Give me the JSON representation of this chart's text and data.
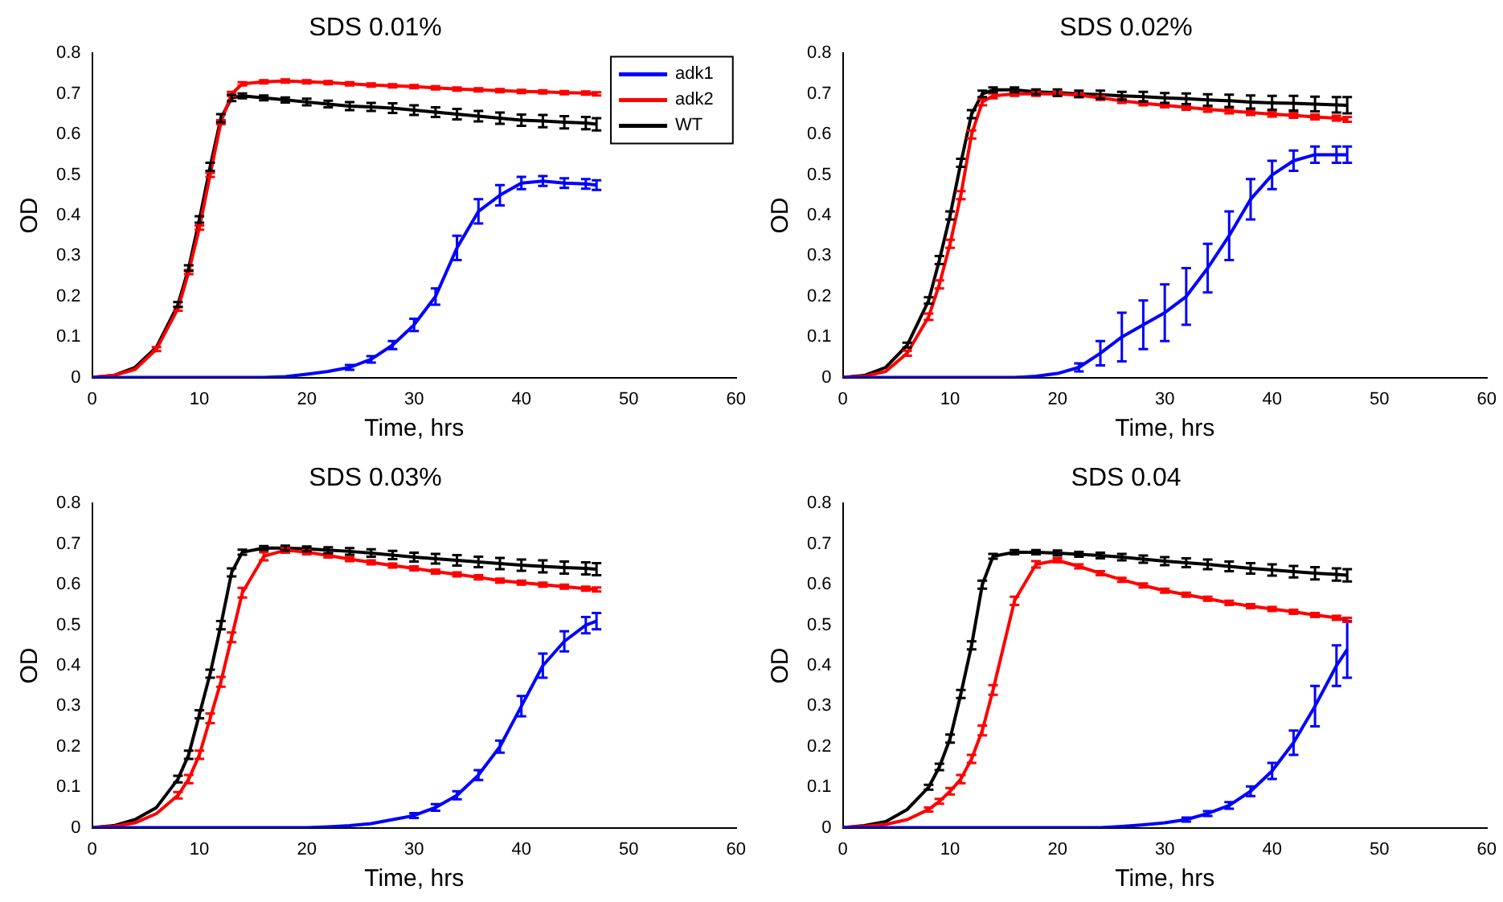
{
  "chart_data": [
    {
      "type": "line",
      "title": "SDS 0.01%",
      "xlabel": "Time, hrs",
      "ylabel": "OD",
      "x": [
        0,
        2,
        4,
        6,
        8,
        9,
        10,
        11,
        12,
        13,
        14,
        16,
        18,
        20,
        22,
        24,
        26,
        28,
        30,
        32,
        34,
        36,
        38,
        40,
        42,
        44,
        46,
        47
      ],
      "xlim": [
        0,
        60
      ],
      "xticks": [
        0,
        10,
        20,
        30,
        40,
        50,
        60
      ],
      "ylim": [
        0,
        0.8
      ],
      "yticks": [
        0,
        0.1,
        0.2,
        0.3,
        0.4,
        0.5,
        0.6,
        0.7,
        0.8
      ],
      "legend": "top right",
      "series": [
        {
          "name": "adk1",
          "color": "#0000ff",
          "values": [
            0,
            0,
            0,
            0,
            0,
            0,
            0,
            0,
            0,
            0,
            0,
            0,
            0.002,
            0.008,
            0.015,
            0.025,
            0.045,
            0.08,
            0.13,
            0.2,
            0.32,
            0.41,
            0.45,
            0.48,
            0.485,
            0.48,
            0.478,
            0.475
          ],
          "errors": [
            null,
            null,
            null,
            null,
            null,
            null,
            null,
            null,
            null,
            null,
            null,
            null,
            null,
            null,
            null,
            0.006,
            0.008,
            0.01,
            0.015,
            0.02,
            0.03,
            0.03,
            0.025,
            0.015,
            0.012,
            0.012,
            0.012,
            0.012
          ]
        },
        {
          "name": "adk2",
          "color": "#ff0000",
          "values": [
            0,
            0.005,
            0.02,
            0.07,
            0.17,
            0.26,
            0.37,
            0.5,
            0.63,
            0.7,
            0.725,
            0.73,
            0.732,
            0.73,
            0.728,
            0.725,
            0.722,
            0.72,
            0.718,
            0.715,
            0.712,
            0.71,
            0.708,
            0.706,
            0.705,
            0.703,
            0.702,
            0.7
          ],
          "errors": [
            null,
            null,
            null,
            0.005,
            0.005,
            0.005,
            0.005,
            0.005,
            0.005,
            0.005,
            0.004,
            0.004,
            0.004,
            0.004,
            0.004,
            0.004,
            0.004,
            0.004,
            0.004,
            0.004,
            0.004,
            0.004,
            0.004,
            0.004,
            0.004,
            0.004,
            0.004,
            0.004
          ]
        },
        {
          "name": "WT",
          "color": "#000000",
          "values": [
            0,
            0.005,
            0.025,
            0.075,
            0.18,
            0.27,
            0.39,
            0.52,
            0.64,
            0.69,
            0.695,
            0.69,
            0.685,
            0.68,
            0.675,
            0.67,
            0.668,
            0.665,
            0.66,
            0.655,
            0.65,
            0.645,
            0.64,
            0.635,
            0.633,
            0.63,
            0.628,
            0.625
          ],
          "errors": [
            null,
            null,
            null,
            null,
            0.006,
            0.007,
            0.008,
            0.01,
            0.01,
            0.008,
            0.006,
            0.006,
            0.006,
            0.008,
            0.008,
            0.01,
            0.01,
            0.012,
            0.012,
            0.012,
            0.013,
            0.013,
            0.014,
            0.014,
            0.015,
            0.015,
            0.015,
            0.015
          ]
        }
      ]
    },
    {
      "type": "line",
      "title": "SDS 0.02%",
      "xlabel": "Time, hrs",
      "ylabel": "OD",
      "x": [
        0,
        2,
        4,
        6,
        8,
        9,
        10,
        11,
        12,
        13,
        14,
        16,
        18,
        20,
        22,
        24,
        26,
        28,
        30,
        32,
        34,
        36,
        38,
        40,
        42,
        44,
        46,
        47
      ],
      "xlim": [
        0,
        60
      ],
      "xticks": [
        0,
        10,
        20,
        30,
        40,
        50,
        60
      ],
      "ylim": [
        0,
        0.8
      ],
      "yticks": [
        0,
        0.1,
        0.2,
        0.3,
        0.4,
        0.5,
        0.6,
        0.7,
        0.8
      ],
      "series": [
        {
          "color": "#0000ff",
          "values": [
            0,
            0,
            0,
            0,
            0,
            0,
            0,
            0,
            0,
            0,
            0,
            0,
            0.003,
            0.01,
            0.025,
            0.06,
            0.1,
            0.13,
            0.16,
            0.2,
            0.27,
            0.35,
            0.44,
            0.5,
            0.535,
            0.55,
            0.55,
            0.55
          ],
          "errors": [
            null,
            null,
            null,
            null,
            null,
            null,
            null,
            null,
            null,
            null,
            null,
            null,
            null,
            null,
            0.01,
            0.03,
            0.06,
            0.06,
            0.07,
            0.07,
            0.06,
            0.06,
            0.05,
            0.035,
            0.025,
            0.02,
            0.02,
            0.02
          ]
        },
        {
          "color": "#ff0000",
          "values": [
            0,
            0.003,
            0.015,
            0.06,
            0.15,
            0.23,
            0.33,
            0.45,
            0.6,
            0.68,
            0.695,
            0.7,
            0.7,
            0.7,
            0.697,
            0.69,
            0.683,
            0.677,
            0.672,
            0.667,
            0.662,
            0.658,
            0.654,
            0.65,
            0.647,
            0.643,
            0.64,
            0.637
          ],
          "errors": [
            null,
            null,
            null,
            0.006,
            0.008,
            0.01,
            0.01,
            0.01,
            0.01,
            0.008,
            0.006,
            0.005,
            0.005,
            0.005,
            0.005,
            0.005,
            0.005,
            0.005,
            0.005,
            0.006,
            0.006,
            0.006,
            0.006,
            0.006,
            0.006,
            0.006,
            0.006,
            0.006
          ]
        },
        {
          "color": "#000000",
          "values": [
            0,
            0.005,
            0.025,
            0.08,
            0.19,
            0.29,
            0.4,
            0.53,
            0.65,
            0.7,
            0.71,
            0.71,
            0.705,
            0.703,
            0.7,
            0.698,
            0.695,
            0.693,
            0.69,
            0.688,
            0.685,
            0.683,
            0.68,
            0.678,
            0.677,
            0.675,
            0.673,
            0.672
          ],
          "errors": [
            null,
            null,
            null,
            0.006,
            0.008,
            0.01,
            0.01,
            0.01,
            0.01,
            0.008,
            0.006,
            0.006,
            0.006,
            0.008,
            0.008,
            0.01,
            0.01,
            0.012,
            0.012,
            0.013,
            0.014,
            0.015,
            0.016,
            0.017,
            0.018,
            0.018,
            0.019,
            0.02
          ]
        }
      ]
    },
    {
      "type": "line",
      "title": "SDS 0.03%",
      "xlabel": "Time, hrs",
      "ylabel": "OD",
      "x": [
        0,
        2,
        4,
        6,
        8,
        9,
        10,
        11,
        12,
        13,
        14,
        16,
        18,
        20,
        22,
        24,
        26,
        28,
        30,
        32,
        34,
        36,
        38,
        40,
        42,
        44,
        46,
        47
      ],
      "xlim": [
        0,
        60
      ],
      "xticks": [
        0,
        10,
        20,
        30,
        40,
        50,
        60
      ],
      "ylim": [
        0,
        0.8
      ],
      "yticks": [
        0,
        0.1,
        0.2,
        0.3,
        0.4,
        0.5,
        0.6,
        0.7,
        0.8
      ],
      "series": [
        {
          "color": "#0000ff",
          "values": [
            0,
            0,
            0,
            0,
            0,
            0,
            0,
            0,
            0,
            0,
            0,
            0,
            0,
            0,
            0.002,
            0.005,
            0.01,
            0.02,
            0.03,
            0.05,
            0.08,
            0.13,
            0.2,
            0.3,
            0.4,
            0.46,
            0.5,
            0.51
          ],
          "errors": [
            null,
            null,
            null,
            null,
            null,
            null,
            null,
            null,
            null,
            null,
            null,
            null,
            null,
            null,
            null,
            null,
            null,
            null,
            0.006,
            0.008,
            0.01,
            0.012,
            0.015,
            0.025,
            0.03,
            0.025,
            0.02,
            0.02
          ]
        },
        {
          "color": "#ff0000",
          "values": [
            0,
            0.003,
            0.012,
            0.035,
            0.08,
            0.12,
            0.18,
            0.27,
            0.36,
            0.47,
            0.58,
            0.67,
            0.685,
            0.68,
            0.672,
            0.663,
            0.655,
            0.647,
            0.64,
            0.632,
            0.625,
            0.618,
            0.61,
            0.605,
            0.6,
            0.595,
            0.59,
            0.588
          ],
          "errors": [
            null,
            null,
            null,
            null,
            0.008,
            0.01,
            0.01,
            0.012,
            0.012,
            0.012,
            0.012,
            0.01,
            0.006,
            0.005,
            0.005,
            0.005,
            0.005,
            0.005,
            0.005,
            0.005,
            0.005,
            0.005,
            0.005,
            0.005,
            0.005,
            0.005,
            0.005,
            0.005
          ]
        },
        {
          "color": "#000000",
          "values": [
            0,
            0.005,
            0.02,
            0.05,
            0.12,
            0.18,
            0.28,
            0.38,
            0.5,
            0.63,
            0.68,
            0.69,
            0.69,
            0.688,
            0.685,
            0.682,
            0.678,
            0.673,
            0.668,
            0.664,
            0.66,
            0.656,
            0.652,
            0.648,
            0.645,
            0.642,
            0.64,
            0.638
          ],
          "errors": [
            null,
            null,
            null,
            null,
            0.008,
            0.01,
            0.01,
            0.01,
            0.01,
            0.01,
            0.006,
            0.005,
            0.006,
            0.006,
            0.007,
            0.008,
            0.009,
            0.01,
            0.011,
            0.012,
            0.013,
            0.013,
            0.014,
            0.014,
            0.015,
            0.015,
            0.015,
            0.015
          ]
        }
      ]
    },
    {
      "type": "line",
      "title": "SDS 0.04",
      "xlabel": "Time, hrs",
      "ylabel": "OD",
      "x": [
        0,
        2,
        4,
        6,
        8,
        9,
        10,
        11,
        12,
        13,
        14,
        16,
        18,
        20,
        22,
        24,
        26,
        28,
        30,
        32,
        34,
        36,
        38,
        40,
        42,
        44,
        46,
        47
      ],
      "xlim": [
        0,
        60
      ],
      "xticks": [
        0,
        10,
        20,
        30,
        40,
        50,
        60
      ],
      "ylim": [
        0,
        0.8
      ],
      "yticks": [
        0,
        0.1,
        0.2,
        0.3,
        0.4,
        0.5,
        0.6,
        0.7,
        0.8
      ],
      "series": [
        {
          "color": "#0000ff",
          "values": [
            0,
            0,
            0,
            0,
            0,
            0,
            0,
            0,
            0,
            0,
            0,
            0,
            0,
            0,
            0,
            0,
            0.003,
            0.007,
            0.012,
            0.02,
            0.035,
            0.055,
            0.09,
            0.14,
            0.21,
            0.3,
            0.4,
            0.44
          ],
          "errors": [
            null,
            null,
            null,
            null,
            null,
            null,
            null,
            null,
            null,
            null,
            null,
            null,
            null,
            null,
            null,
            null,
            null,
            null,
            null,
            0.005,
            0.006,
            0.008,
            0.012,
            0.02,
            0.03,
            0.05,
            0.05,
            0.07
          ]
        },
        {
          "color": "#ff0000",
          "values": [
            0,
            0.003,
            0.008,
            0.02,
            0.045,
            0.065,
            0.09,
            0.12,
            0.17,
            0.24,
            0.34,
            0.56,
            0.65,
            0.66,
            0.645,
            0.628,
            0.612,
            0.598,
            0.585,
            0.575,
            0.565,
            0.555,
            0.547,
            0.54,
            0.533,
            0.525,
            0.518,
            0.513
          ],
          "errors": [
            null,
            null,
            null,
            null,
            0.005,
            0.006,
            0.008,
            0.01,
            0.01,
            0.012,
            0.012,
            0.01,
            0.008,
            0.005,
            0.005,
            0.005,
            0.005,
            0.005,
            0.005,
            0.005,
            0.005,
            0.005,
            0.005,
            0.005,
            0.005,
            0.005,
            0.005,
            0.005
          ]
        },
        {
          "color": "#000000",
          "values": [
            0,
            0.005,
            0.015,
            0.045,
            0.1,
            0.15,
            0.22,
            0.33,
            0.45,
            0.6,
            0.67,
            0.68,
            0.68,
            0.678,
            0.675,
            0.672,
            0.668,
            0.663,
            0.658,
            0.654,
            0.65,
            0.645,
            0.64,
            0.636,
            0.632,
            0.628,
            0.625,
            0.623
          ],
          "errors": [
            null,
            null,
            null,
            null,
            0.006,
            0.008,
            0.01,
            0.01,
            0.01,
            0.01,
            0.006,
            0.005,
            0.005,
            0.006,
            0.006,
            0.007,
            0.008,
            0.009,
            0.01,
            0.011,
            0.012,
            0.012,
            0.013,
            0.014,
            0.014,
            0.015,
            0.015,
            0.015
          ]
        }
      ]
    }
  ]
}
